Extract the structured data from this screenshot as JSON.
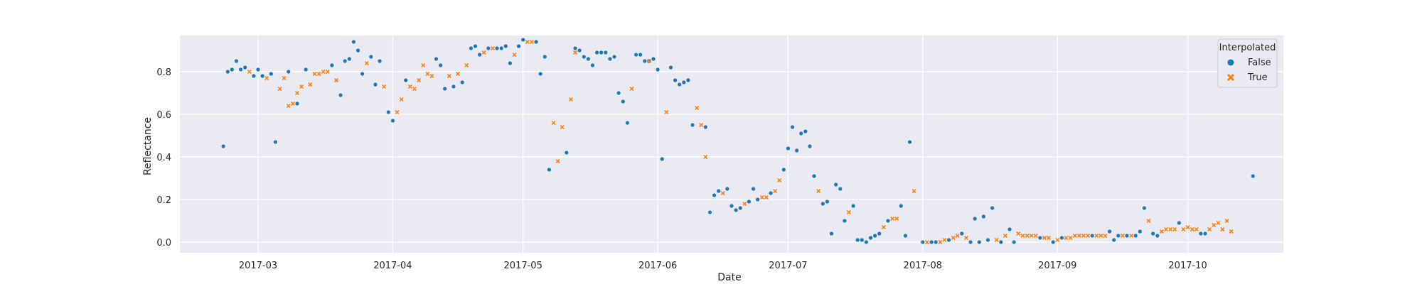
{
  "chart_data": {
    "type": "scatter",
    "title": "",
    "xlabel": "Date",
    "ylabel": "Reflectance",
    "x_ticks": [
      "2017-03",
      "2017-04",
      "2017-05",
      "2017-06",
      "2017-07",
      "2017-08",
      "2017-09",
      "2017-10"
    ],
    "y_ticks": [
      "0.0",
      "0.2",
      "0.4",
      "0.6",
      "0.8"
    ],
    "xlim": [
      "2017-02-11",
      "2017-10-23"
    ],
    "ylim": [
      -0.05,
      0.97
    ],
    "grid": true,
    "legend": {
      "title": "Interpolated",
      "placement": "top-right",
      "entries": [
        {
          "label": "False",
          "marker": "circle",
          "color": "#1f77b4"
        },
        {
          "label": "True",
          "marker": "x",
          "color": "#ff7f0e"
        }
      ]
    },
    "series": [
      {
        "name": "False",
        "color": "#1f77b4",
        "marker": "circle",
        "points": [
          [
            "2017-02-21",
            0.45
          ],
          [
            "2017-02-22",
            0.8
          ],
          [
            "2017-02-23",
            0.81
          ],
          [
            "2017-02-24",
            0.85
          ],
          [
            "2017-02-25",
            0.81
          ],
          [
            "2017-02-26",
            0.82
          ],
          [
            "2017-02-28",
            0.78
          ],
          [
            "2017-03-01",
            0.81
          ],
          [
            "2017-03-02",
            0.78
          ],
          [
            "2017-03-04",
            0.79
          ],
          [
            "2017-03-05",
            0.47
          ],
          [
            "2017-03-08",
            0.8
          ],
          [
            "2017-03-10",
            0.65
          ],
          [
            "2017-03-12",
            0.81
          ],
          [
            "2017-03-18",
            0.83
          ],
          [
            "2017-03-20",
            0.69
          ],
          [
            "2017-03-21",
            0.85
          ],
          [
            "2017-03-22",
            0.86
          ],
          [
            "2017-03-23",
            0.94
          ],
          [
            "2017-03-24",
            0.9
          ],
          [
            "2017-03-25",
            0.79
          ],
          [
            "2017-03-27",
            0.87
          ],
          [
            "2017-03-28",
            0.74
          ],
          [
            "2017-03-29",
            0.85
          ],
          [
            "2017-03-31",
            0.61
          ],
          [
            "2017-04-01",
            0.57
          ],
          [
            "2017-04-04",
            0.76
          ],
          [
            "2017-04-11",
            0.86
          ],
          [
            "2017-04-12",
            0.83
          ],
          [
            "2017-04-13",
            0.72
          ],
          [
            "2017-04-15",
            0.73
          ],
          [
            "2017-04-17",
            0.75
          ],
          [
            "2017-04-19",
            0.91
          ],
          [
            "2017-04-20",
            0.92
          ],
          [
            "2017-04-21",
            0.88
          ],
          [
            "2017-04-23",
            0.91
          ],
          [
            "2017-04-25",
            0.91
          ],
          [
            "2017-04-26",
            0.91
          ],
          [
            "2017-04-27",
            0.92
          ],
          [
            "2017-04-28",
            0.84
          ],
          [
            "2017-04-30",
            0.92
          ],
          [
            "2017-05-01",
            0.95
          ],
          [
            "2017-05-04",
            0.94
          ],
          [
            "2017-05-05",
            0.79
          ],
          [
            "2017-05-06",
            0.87
          ],
          [
            "2017-05-07",
            0.34
          ],
          [
            "2017-05-11",
            0.42
          ],
          [
            "2017-05-13",
            0.91
          ],
          [
            "2017-05-14",
            0.9
          ],
          [
            "2017-05-15",
            0.87
          ],
          [
            "2017-05-16",
            0.86
          ],
          [
            "2017-05-17",
            0.83
          ],
          [
            "2017-05-18",
            0.89
          ],
          [
            "2017-05-19",
            0.89
          ],
          [
            "2017-05-20",
            0.89
          ],
          [
            "2017-05-21",
            0.86
          ],
          [
            "2017-05-22",
            0.87
          ],
          [
            "2017-05-23",
            0.7
          ],
          [
            "2017-05-24",
            0.66
          ],
          [
            "2017-05-25",
            0.56
          ],
          [
            "2017-05-27",
            0.88
          ],
          [
            "2017-05-28",
            0.88
          ],
          [
            "2017-05-29",
            0.85
          ],
          [
            "2017-05-30",
            0.85
          ],
          [
            "2017-05-31",
            0.86
          ],
          [
            "2017-06-01",
            0.81
          ],
          [
            "2017-06-02",
            0.39
          ],
          [
            "2017-06-04",
            0.82
          ],
          [
            "2017-06-05",
            0.76
          ],
          [
            "2017-06-06",
            0.74
          ],
          [
            "2017-06-07",
            0.75
          ],
          [
            "2017-06-08",
            0.76
          ],
          [
            "2017-06-09",
            0.55
          ],
          [
            "2017-06-12",
            0.54
          ],
          [
            "2017-06-13",
            0.14
          ],
          [
            "2017-06-14",
            0.22
          ],
          [
            "2017-06-15",
            0.24
          ],
          [
            "2017-06-17",
            0.25
          ],
          [
            "2017-06-18",
            0.17
          ],
          [
            "2017-06-19",
            0.15
          ],
          [
            "2017-06-20",
            0.16
          ],
          [
            "2017-06-22",
            0.19
          ],
          [
            "2017-06-23",
            0.25
          ],
          [
            "2017-06-24",
            0.2
          ],
          [
            "2017-06-27",
            0.23
          ],
          [
            "2017-06-30",
            0.34
          ],
          [
            "2017-07-01",
            0.44
          ],
          [
            "2017-07-02",
            0.54
          ],
          [
            "2017-07-03",
            0.43
          ],
          [
            "2017-07-04",
            0.51
          ],
          [
            "2017-07-05",
            0.52
          ],
          [
            "2017-07-06",
            0.45
          ],
          [
            "2017-07-07",
            0.31
          ],
          [
            "2017-07-09",
            0.18
          ],
          [
            "2017-07-10",
            0.19
          ],
          [
            "2017-07-11",
            0.04
          ],
          [
            "2017-07-12",
            0.27
          ],
          [
            "2017-07-13",
            0.25
          ],
          [
            "2017-07-14",
            0.1
          ],
          [
            "2017-07-16",
            0.17
          ],
          [
            "2017-07-17",
            0.01
          ],
          [
            "2017-07-18",
            0.01
          ],
          [
            "2017-07-19",
            0.0
          ],
          [
            "2017-07-20",
            0.02
          ],
          [
            "2017-07-21",
            0.03
          ],
          [
            "2017-07-22",
            0.04
          ],
          [
            "2017-07-24",
            0.1
          ],
          [
            "2017-07-27",
            0.17
          ],
          [
            "2017-07-28",
            0.03
          ],
          [
            "2017-07-29",
            0.47
          ],
          [
            "2017-08-01",
            0.0
          ],
          [
            "2017-08-03",
            0.0
          ],
          [
            "2017-08-04",
            0.0
          ],
          [
            "2017-08-07",
            0.01
          ],
          [
            "2017-08-10",
            0.04
          ],
          [
            "2017-08-12",
            0.0
          ],
          [
            "2017-08-13",
            0.11
          ],
          [
            "2017-08-14",
            0.0
          ],
          [
            "2017-08-15",
            0.12
          ],
          [
            "2017-08-16",
            0.01
          ],
          [
            "2017-08-17",
            0.16
          ],
          [
            "2017-08-19",
            0.0
          ],
          [
            "2017-08-21",
            0.06
          ],
          [
            "2017-08-22",
            0.0
          ],
          [
            "2017-08-28",
            0.02
          ],
          [
            "2017-08-31",
            0.0
          ],
          [
            "2017-09-02",
            0.02
          ],
          [
            "2017-09-09",
            0.03
          ],
          [
            "2017-09-13",
            0.05
          ],
          [
            "2017-09-14",
            0.01
          ],
          [
            "2017-09-15",
            0.03
          ],
          [
            "2017-09-17",
            0.03
          ],
          [
            "2017-09-19",
            0.03
          ],
          [
            "2017-09-20",
            0.05
          ],
          [
            "2017-09-21",
            0.16
          ],
          [
            "2017-09-23",
            0.04
          ],
          [
            "2017-09-24",
            0.03
          ],
          [
            "2017-09-29",
            0.09
          ],
          [
            "2017-10-04",
            0.04
          ],
          [
            "2017-10-05",
            0.04
          ],
          [
            "2017-10-16",
            0.31
          ]
        ]
      },
      {
        "name": "True",
        "color": "#ff7f0e",
        "marker": "x",
        "points": [
          [
            "2017-02-27",
            0.8
          ],
          [
            "2017-03-03",
            0.77
          ],
          [
            "2017-03-06",
            0.72
          ],
          [
            "2017-03-07",
            0.77
          ],
          [
            "2017-03-08",
            0.64
          ],
          [
            "2017-03-09",
            0.65
          ],
          [
            "2017-03-10",
            0.7
          ],
          [
            "2017-03-11",
            0.73
          ],
          [
            "2017-03-13",
            0.74
          ],
          [
            "2017-03-14",
            0.79
          ],
          [
            "2017-03-15",
            0.79
          ],
          [
            "2017-03-16",
            0.8
          ],
          [
            "2017-03-17",
            0.8
          ],
          [
            "2017-03-19",
            0.76
          ],
          [
            "2017-03-26",
            0.84
          ],
          [
            "2017-03-30",
            0.73
          ],
          [
            "2017-04-02",
            0.61
          ],
          [
            "2017-04-03",
            0.67
          ],
          [
            "2017-04-05",
            0.73
          ],
          [
            "2017-04-06",
            0.72
          ],
          [
            "2017-04-07",
            0.76
          ],
          [
            "2017-04-08",
            0.83
          ],
          [
            "2017-04-09",
            0.79
          ],
          [
            "2017-04-10",
            0.78
          ],
          [
            "2017-04-14",
            0.78
          ],
          [
            "2017-04-16",
            0.79
          ],
          [
            "2017-04-18",
            0.83
          ],
          [
            "2017-04-22",
            0.89
          ],
          [
            "2017-04-24",
            0.91
          ],
          [
            "2017-04-29",
            0.88
          ],
          [
            "2017-05-02",
            0.94
          ],
          [
            "2017-05-03",
            0.94
          ],
          [
            "2017-05-08",
            0.56
          ],
          [
            "2017-05-09",
            0.38
          ],
          [
            "2017-05-10",
            0.54
          ],
          [
            "2017-05-12",
            0.67
          ],
          [
            "2017-05-13",
            0.89
          ],
          [
            "2017-05-26",
            0.72
          ],
          [
            "2017-05-30",
            0.85
          ],
          [
            "2017-06-03",
            0.61
          ],
          [
            "2017-06-10",
            0.63
          ],
          [
            "2017-06-11",
            0.55
          ],
          [
            "2017-06-12",
            0.4
          ],
          [
            "2017-06-16",
            0.23
          ],
          [
            "2017-06-21",
            0.18
          ],
          [
            "2017-06-25",
            0.21
          ],
          [
            "2017-06-26",
            0.21
          ],
          [
            "2017-06-28",
            0.24
          ],
          [
            "2017-06-29",
            0.29
          ],
          [
            "2017-07-08",
            0.24
          ],
          [
            "2017-07-15",
            0.14
          ],
          [
            "2017-07-23",
            0.07
          ],
          [
            "2017-07-25",
            0.11
          ],
          [
            "2017-07-26",
            0.11
          ],
          [
            "2017-07-30",
            0.24
          ],
          [
            "2017-08-02",
            0.0
          ],
          [
            "2017-08-05",
            0.0
          ],
          [
            "2017-08-06",
            0.01
          ],
          [
            "2017-08-08",
            0.02
          ],
          [
            "2017-08-09",
            0.03
          ],
          [
            "2017-08-11",
            0.02
          ],
          [
            "2017-08-18",
            0.01
          ],
          [
            "2017-08-20",
            0.03
          ],
          [
            "2017-08-23",
            0.04
          ],
          [
            "2017-08-24",
            0.03
          ],
          [
            "2017-08-25",
            0.03
          ],
          [
            "2017-08-26",
            0.03
          ],
          [
            "2017-08-27",
            0.03
          ],
          [
            "2017-08-29",
            0.02
          ],
          [
            "2017-08-30",
            0.02
          ],
          [
            "2017-09-01",
            0.01
          ],
          [
            "2017-09-03",
            0.02
          ],
          [
            "2017-09-04",
            0.02
          ],
          [
            "2017-09-05",
            0.03
          ],
          [
            "2017-09-06",
            0.03
          ],
          [
            "2017-09-07",
            0.03
          ],
          [
            "2017-09-08",
            0.03
          ],
          [
            "2017-09-10",
            0.03
          ],
          [
            "2017-09-11",
            0.03
          ],
          [
            "2017-09-12",
            0.03
          ],
          [
            "2017-09-16",
            0.03
          ],
          [
            "2017-09-18",
            0.03
          ],
          [
            "2017-09-22",
            0.1
          ],
          [
            "2017-09-25",
            0.05
          ],
          [
            "2017-09-26",
            0.06
          ],
          [
            "2017-09-27",
            0.06
          ],
          [
            "2017-09-28",
            0.06
          ],
          [
            "2017-09-30",
            0.06
          ],
          [
            "2017-10-01",
            0.07
          ],
          [
            "2017-10-02",
            0.06
          ],
          [
            "2017-10-03",
            0.06
          ],
          [
            "2017-10-06",
            0.06
          ],
          [
            "2017-10-07",
            0.08
          ],
          [
            "2017-10-08",
            0.09
          ],
          [
            "2017-10-09",
            0.06
          ],
          [
            "2017-10-10",
            0.1
          ],
          [
            "2017-10-11",
            0.05
          ]
        ]
      }
    ]
  }
}
